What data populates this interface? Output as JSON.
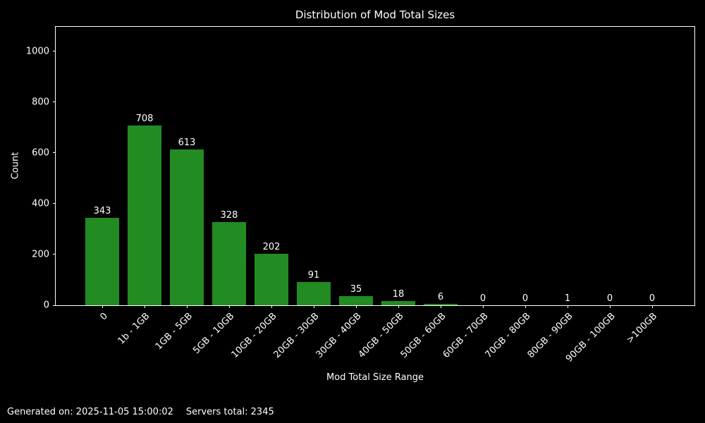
{
  "title": "Distribution of Mod Total Sizes",
  "chart_data": {
    "type": "bar",
    "title": "Distribution of Mod Total Sizes",
    "xlabel": "Mod Total Size Range",
    "ylabel": "Count",
    "categories": [
      "0",
      "1b - 1GB",
      "1GB - 5GB",
      "5GB - 10GB",
      "10GB - 20GB",
      "20GB - 30GB",
      "30GB - 40GB",
      "40GB - 50GB",
      "50GB - 60GB",
      "60GB - 70GB",
      "70GB - 80GB",
      "80GB - 90GB",
      "90GB - 100GB",
      ">100GB"
    ],
    "values": [
      343,
      708,
      613,
      328,
      202,
      91,
      35,
      18,
      6,
      0,
      0,
      1,
      0,
      0
    ],
    "value_labels": [
      "343",
      "708",
      "613",
      "328",
      "202",
      "91",
      "35",
      "18",
      "6",
      "0",
      "0",
      "1",
      "0",
      "0"
    ],
    "yticks": [
      0,
      200,
      400,
      600,
      800,
      1000
    ],
    "ylim": [
      0,
      1097
    ],
    "grid": false,
    "legend_position": "none",
    "bar_color": "#228B22",
    "background_color": "#000000",
    "text_color": "#ffffff",
    "axis_color": "#ffffff"
  },
  "footer": {
    "generated_on": "Generated on: 2025-11-05 15:00:02",
    "servers_total": "Servers total: 2345"
  }
}
